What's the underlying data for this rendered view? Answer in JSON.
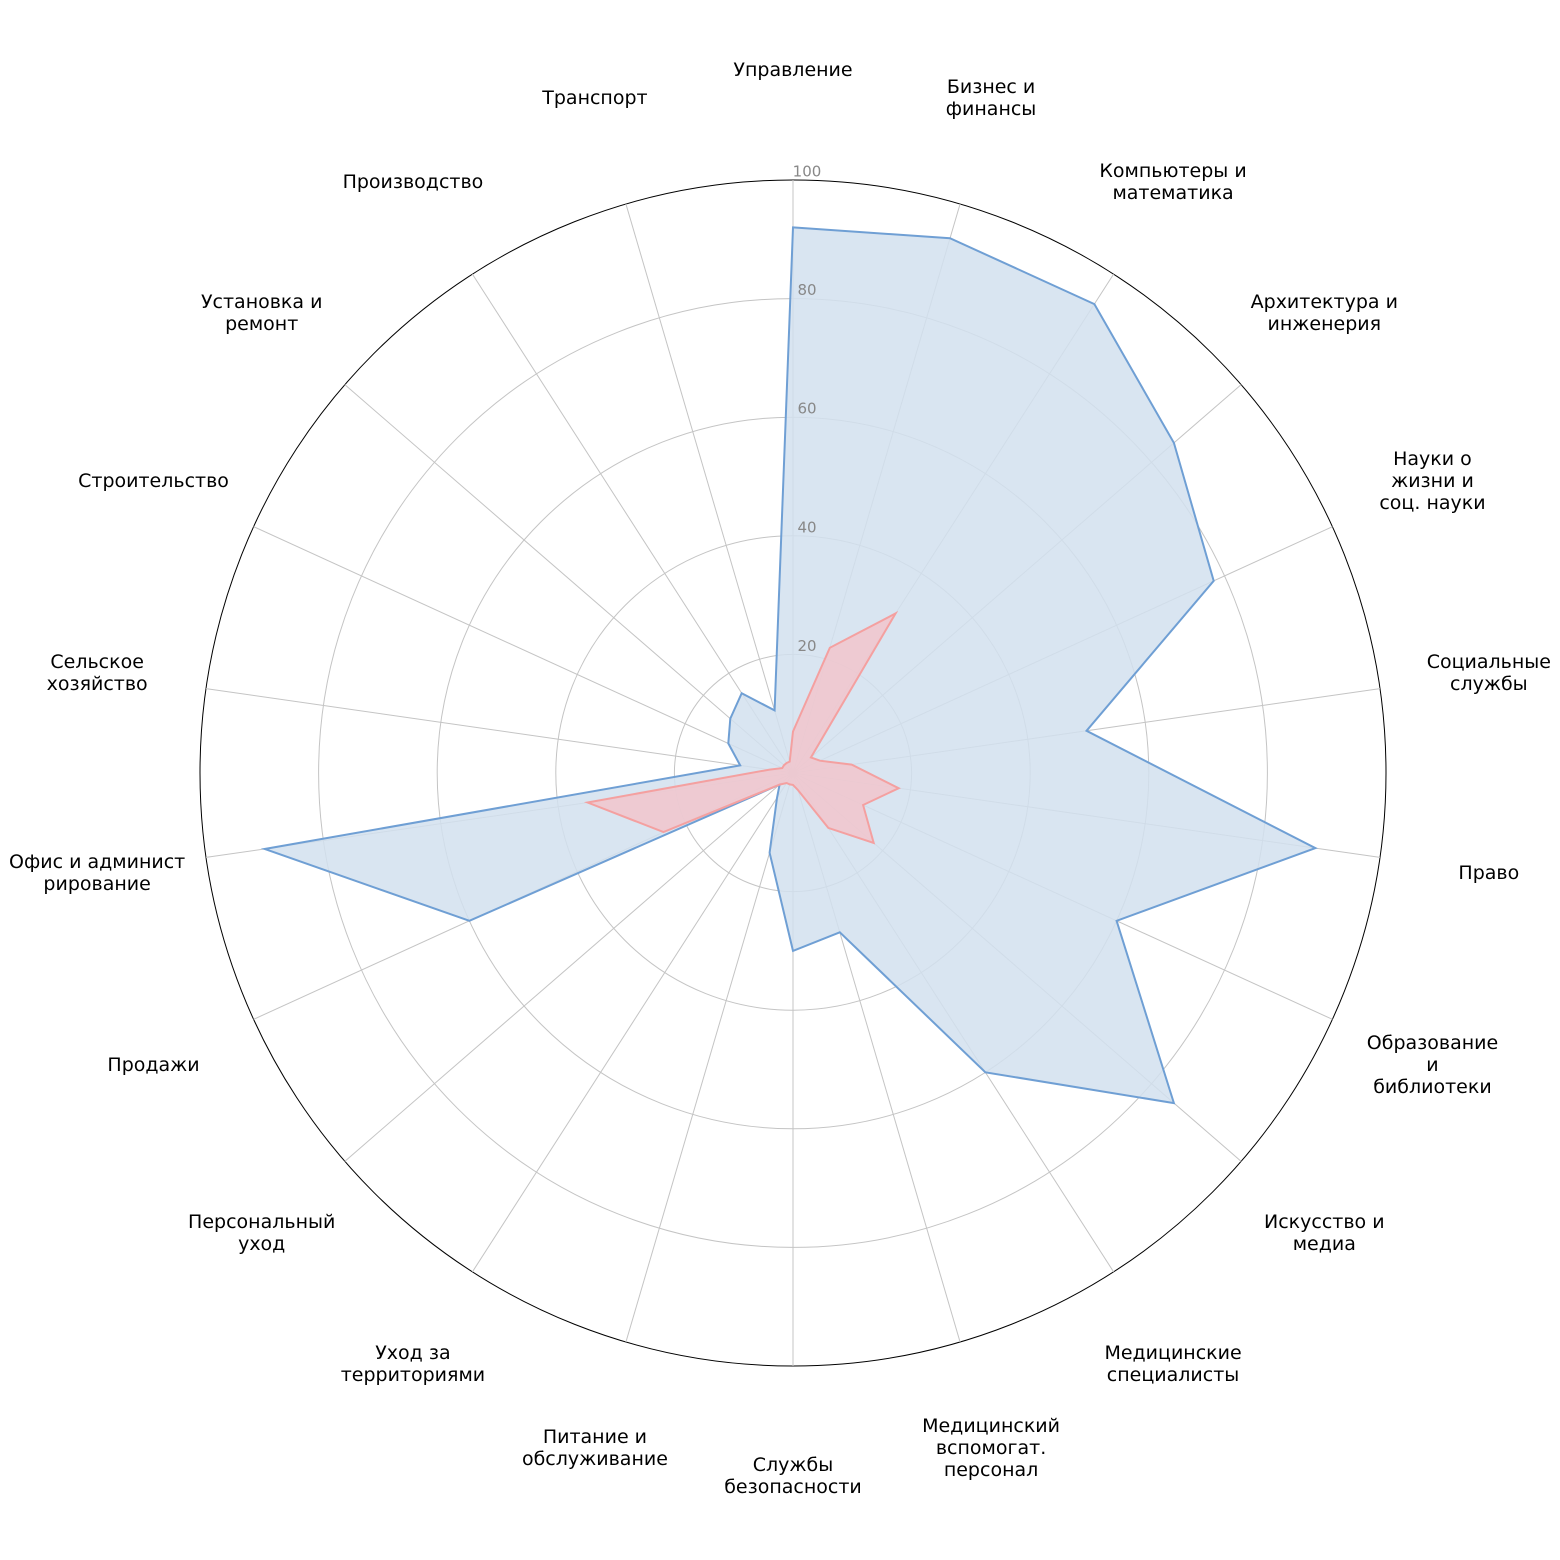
{
  "chart_data": {
    "type": "radar",
    "categories": [
      "Управление",
      "Бизнес и\nфинансы",
      "Компьютеры и\nматематика",
      "Архитектура и\nинженерия",
      "Науки о жизни и\nсоц. науки",
      "Социальные\nслужбы",
      "Право",
      "Образование и\nбиблиотеки",
      "Искусство и\nмедиа",
      "Медицинские\nспециалисты",
      "Медицинский\nвспомогат.\nперсонал",
      "Службы\nбезопасности",
      "Питание и\nобслуживание",
      "Уход за\nтерриториями",
      "Персональный\nуход",
      "Продажи",
      "Офис и админист\nрирование",
      "Сельское\nхозяйство",
      "Строительство",
      "Установка и\nремонт",
      "Производство",
      "Транспорт"
    ],
    "series": [
      {
        "color": "#6f9fd4",
        "fill": "#d2e0ef",
        "values": [
          92,
          94,
          94,
          85,
          78,
          50,
          89,
          60,
          85,
          60,
          28,
          30,
          14,
          5,
          3,
          60,
          90,
          9,
          12,
          14,
          16,
          11
        ]
      },
      {
        "color": "#f4a0a0",
        "fill": "#f1c6cc",
        "values": [
          7,
          22,
          32,
          4,
          5,
          10,
          18,
          13,
          18,
          11,
          3,
          2,
          2,
          2,
          3,
          24,
          35,
          4,
          2,
          2,
          2,
          2
        ]
      }
    ],
    "rlim": [
      0,
      100
    ],
    "rticks": [
      20,
      40,
      60,
      80,
      100
    ],
    "grid": true
  }
}
